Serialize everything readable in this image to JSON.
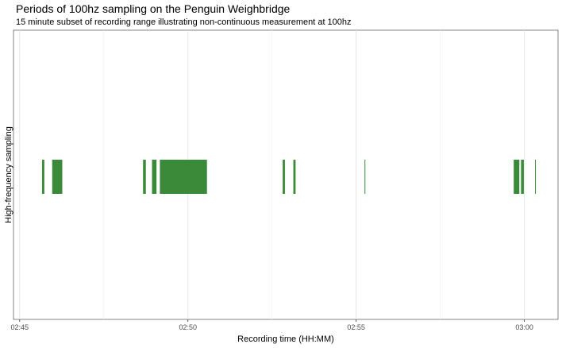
{
  "chart_data": {
    "type": "bar",
    "title": "Periods of 100hz sampling on the Penguin Weighbridge",
    "subtitle": "15 minute subset of recording range illustrating non-continuous measurement at 100hz",
    "xlabel": "Recording time (HH:MM)",
    "ylabel": "High-frequency sampling",
    "x_axis": {
      "unit": "time of day (HH:MM:SS)",
      "range": [
        "02:44:49",
        "03:01:00"
      ],
      "ticks": [
        "02:45",
        "02:50",
        "02:55",
        "03:00"
      ],
      "minor_ticks": [
        "02:47:30",
        "02:52:30",
        "02:57:30"
      ]
    },
    "grid": true,
    "legend": "none",
    "bar_color": "#3a8a3a",
    "series": [
      {
        "intervals": [
          {
            "start": "02:45:40",
            "end": "02:45:44"
          },
          {
            "start": "02:45:58",
            "end": "02:46:16"
          },
          {
            "start": "02:48:40",
            "end": "02:48:45"
          },
          {
            "start": "02:48:56",
            "end": "02:49:04"
          },
          {
            "start": "02:49:10",
            "end": "02:50:34"
          },
          {
            "start": "02:52:49",
            "end": "02:52:53"
          },
          {
            "start": "02:53:08",
            "end": "02:53:12"
          },
          {
            "start": "02:55:15",
            "end": "02:55:16"
          },
          {
            "start": "02:59:41",
            "end": "02:59:51"
          },
          {
            "start": "02:59:54",
            "end": "02:59:59"
          },
          {
            "start": "03:00:19",
            "end": "03:00:20"
          }
        ]
      }
    ]
  }
}
